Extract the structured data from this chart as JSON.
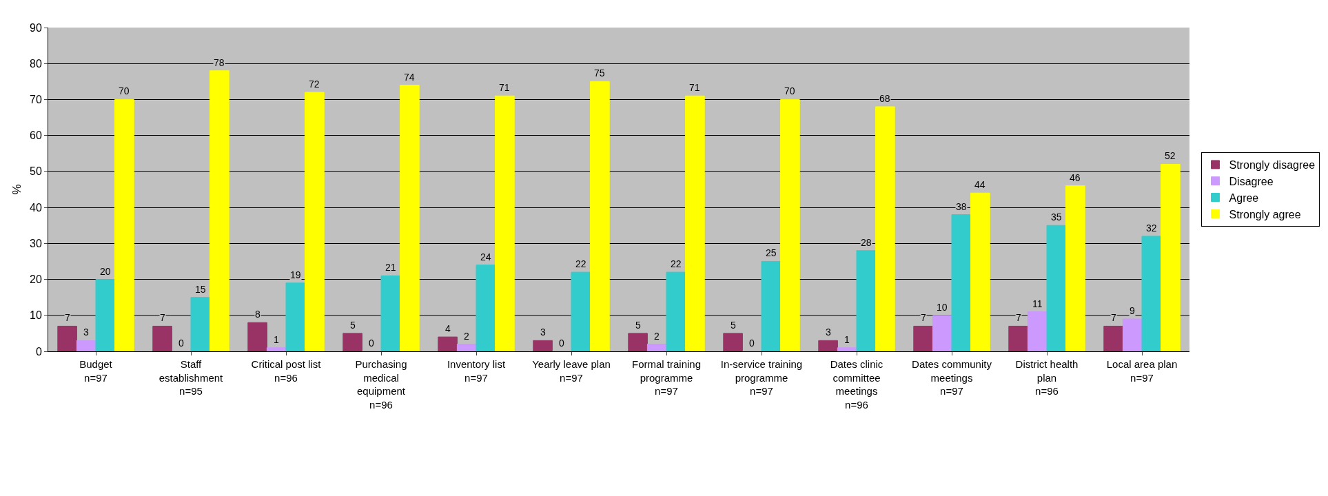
{
  "chart_data": {
    "type": "bar",
    "ylabel": "%",
    "categories": [
      "Budget\nn=97",
      "Staff\nestablishment\nn=95",
      "Critical post list\nn=96",
      "Purchasing\nmedical\nequipment\nn=96",
      "Inventory list\nn=97",
      "Yearly leave plan\nn=97",
      "Formal training\nprogramme\nn=97",
      "In-service training\nprogramme\nn=97",
      "Dates clinic\ncommittee\nmeetings\nn=96",
      "Dates community\nmeetings\nn=97",
      "District health\nplan\nn=96",
      "Local area plan\nn=97"
    ],
    "series": [
      {
        "name": "Strongly disagree",
        "color": "#993366",
        "values": [
          7,
          7,
          8,
          5,
          4,
          3,
          5,
          5,
          3,
          7,
          7,
          7
        ]
      },
      {
        "name": "Disagree",
        "color": "#cc99ff",
        "values": [
          3,
          0,
          1,
          0,
          2,
          0,
          2,
          0,
          1,
          10,
          11,
          9
        ]
      },
      {
        "name": "Agree",
        "color": "#33cccc",
        "values": [
          20,
          15,
          19,
          21,
          24,
          22,
          22,
          25,
          28,
          38,
          35,
          32
        ]
      },
      {
        "name": "Strongly agree",
        "color": "#ffff00",
        "values": [
          70,
          78,
          72,
          74,
          71,
          75,
          71,
          70,
          68,
          44,
          46,
          52
        ]
      }
    ],
    "ylim": [
      0,
      90
    ],
    "yticks": [
      0,
      10,
      20,
      30,
      40,
      50,
      60,
      70,
      80,
      90
    ],
    "grid": "y",
    "legend": "right",
    "data_labels": true
  }
}
